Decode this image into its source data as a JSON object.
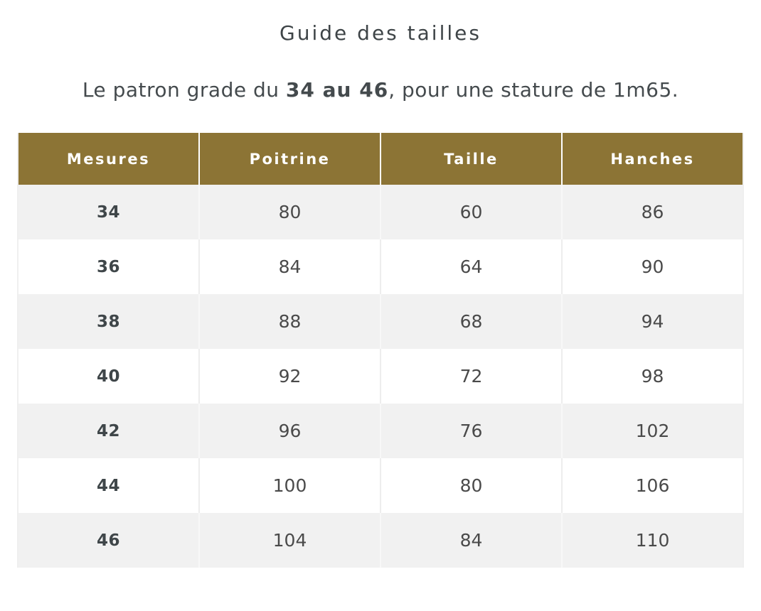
{
  "page": {
    "title": "Guide des tailles",
    "subtitle": {
      "prefix": "Le patron grade du ",
      "bold": "34 au 46",
      "suffix": ", pour une stature de 1m65."
    }
  },
  "table": {
    "columns": [
      "Mesures",
      "Poitrine",
      "Taille",
      "Hanches"
    ],
    "rows": [
      [
        "34",
        "80",
        "60",
        "86"
      ],
      [
        "36",
        "84",
        "64",
        "90"
      ],
      [
        "38",
        "88",
        "68",
        "94"
      ],
      [
        "40",
        "92",
        "72",
        "98"
      ],
      [
        "42",
        "96",
        "76",
        "102"
      ],
      [
        "44",
        "100",
        "80",
        "106"
      ],
      [
        "46",
        "104",
        "84",
        "110"
      ]
    ]
  },
  "colors": {
    "header_bg": "#8c7435",
    "row_alt_bg": "#f1f1f1",
    "header_text": "#ffffff",
    "body_text": "#4a4a4a",
    "title_text": "#3e4447"
  }
}
